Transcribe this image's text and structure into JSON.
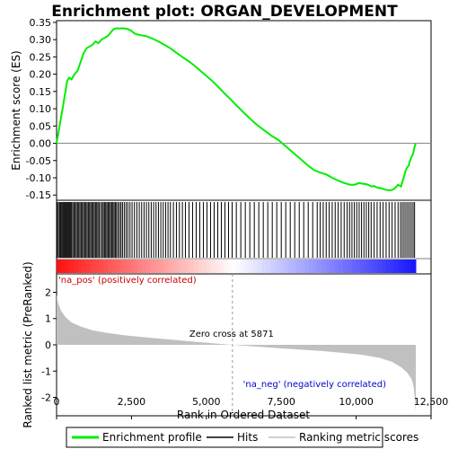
{
  "chart_data": {
    "type": "line",
    "title": "Enrichment plot: ORGAN_DEVELOPMENT",
    "xlabel": "Rank in Ordered Dataset",
    "xlim": [
      0,
      12500
    ],
    "x_ticks": [
      0,
      2500,
      5000,
      7500,
      10000,
      12500
    ],
    "x_tick_labels": [
      "0",
      "2,500",
      "5,000",
      "7,500",
      "10,000",
      "12,500"
    ],
    "panels": {
      "es": {
        "ylabel": "Enrichment score (ES)",
        "ylim": [
          -0.165,
          0.355
        ],
        "y_ticks": [
          -0.15,
          -0.1,
          -0.05,
          0.0,
          0.05,
          0.1,
          0.15,
          0.2,
          0.25,
          0.3,
          0.35
        ],
        "y_tick_labels": [
          "-0.15",
          "-0.10",
          "-0.05",
          "0.00",
          "0.05",
          "0.10",
          "0.15",
          "0.20",
          "0.25",
          "0.30",
          "0.35"
        ],
        "series": [
          {
            "name": "Enrichment profile",
            "color": "#00ee00",
            "x": [
              0,
              60,
              120,
              200,
              280,
              350,
              420,
              500,
              600,
              700,
              800,
              900,
              1000,
              1100,
              1200,
              1300,
              1400,
              1500,
              1600,
              1700,
              1800,
              1900,
              2000,
              2100,
              2200,
              2300,
              2400,
              2500,
              2600,
              2700,
              2800,
              3000,
              3200,
              3400,
              3600,
              3800,
              4000,
              4200,
              4400,
              4600,
              4800,
              5000,
              5200,
              5400,
              5600,
              5800,
              6000,
              6200,
              6400,
              6600,
              6800,
              7000,
              7200,
              7400,
              7600,
              7800,
              8000,
              8200,
              8400,
              8600,
              8800,
              9000,
              9200,
              9400,
              9600,
              9800,
              9950,
              10100,
              10200,
              10300,
              10400,
              10500,
              10600,
              10700,
              10800,
              10900,
              11000,
              11100,
              11200,
              11300,
              11400,
              11500,
              11550,
              11600,
              11650,
              11700,
              11750,
              11800,
              11850,
              11900,
              11950,
              11990
            ],
            "y": [
              0.0,
              0.03,
              0.06,
              0.1,
              0.14,
              0.18,
              0.19,
              0.185,
              0.2,
              0.21,
              0.235,
              0.26,
              0.275,
              0.28,
              0.285,
              0.295,
              0.29,
              0.3,
              0.305,
              0.31,
              0.32,
              0.33,
              0.333,
              0.332,
              0.333,
              0.332,
              0.33,
              0.325,
              0.318,
              0.315,
              0.313,
              0.31,
              0.303,
              0.295,
              0.285,
              0.275,
              0.262,
              0.25,
              0.238,
              0.225,
              0.21,
              0.195,
              0.18,
              0.163,
              0.145,
              0.128,
              0.11,
              0.093,
              0.076,
              0.06,
              0.046,
              0.033,
              0.02,
              0.01,
              -0.005,
              -0.02,
              -0.035,
              -0.05,
              -0.065,
              -0.078,
              -0.085,
              -0.09,
              -0.1,
              -0.108,
              -0.115,
              -0.12,
              -0.12,
              -0.115,
              -0.117,
              -0.118,
              -0.12,
              -0.125,
              -0.124,
              -0.128,
              -0.13,
              -0.132,
              -0.135,
              -0.136,
              -0.135,
              -0.13,
              -0.12,
              -0.125,
              -0.11,
              -0.095,
              -0.08,
              -0.07,
              -0.065,
              -0.05,
              -0.04,
              -0.03,
              -0.01,
              0.0
            ]
          }
        ]
      },
      "hits": {
        "legend_label": "Hits",
        "positions": [
          20,
          60,
          100,
          130,
          160,
          200,
          230,
          260,
          290,
          320,
          350,
          380,
          410,
          440,
          470,
          500,
          540,
          580,
          620,
          660,
          700,
          740,
          780,
          820,
          860,
          900,
          940,
          980,
          1020,
          1060,
          1100,
          1140,
          1180,
          1220,
          1260,
          1300,
          1340,
          1380,
          1420,
          1470,
          1520,
          1560,
          1600,
          1640,
          1680,
          1720,
          1760,
          1800,
          1840,
          1880,
          1920,
          1960,
          2000,
          2050,
          2100,
          2150,
          2200,
          2260,
          2320,
          2380,
          2450,
          2520,
          2600,
          2680,
          2760,
          2840,
          2920,
          3000,
          3080,
          3160,
          3240,
          3320,
          3400,
          3480,
          3560,
          3640,
          3720,
          3800,
          3900,
          4000,
          4100,
          4200,
          4300,
          4420,
          4540,
          4660,
          4780,
          4900,
          5020,
          5140,
          5260,
          5380,
          5500,
          5620,
          5740,
          5860,
          6000,
          6150,
          6300,
          6450,
          6600,
          6750,
          6900,
          7050,
          7200,
          7350,
          7500,
          7650,
          7800,
          7950,
          8100,
          8250,
          8400,
          8550,
          8700,
          8800,
          8900,
          9000,
          9100,
          9200,
          9300,
          9400,
          9500,
          9600,
          9700,
          9780,
          9860,
          9940,
          10020,
          10100,
          10180,
          10260,
          10340,
          10420,
          10500,
          10600,
          10700,
          10800,
          10900,
          11000,
          11100,
          11200,
          11300,
          11400,
          11480,
          11540,
          11600,
          11660,
          11720,
          11780,
          11840,
          11900,
          11950
        ]
      },
      "metric": {
        "ylabel": "Ranked list metric (PreRanked)",
        "ylim": [
          -2.7,
          2.7
        ],
        "y_ticks": [
          -2,
          -1,
          0,
          1,
          2
        ],
        "y_tick_labels": [
          "-2",
          "-1",
          "0",
          "1",
          "2"
        ],
        "fill_color": "#c0c0c0",
        "series_name": "Ranking metric scores",
        "x": [
          0,
          50,
          150,
          300,
          500,
          800,
          1200,
          1700,
          2300,
          3000,
          3800,
          4600,
          5300,
          5871,
          6500,
          7200,
          8000,
          8800,
          9500,
          10200,
          10800,
          11200,
          11500,
          11700,
          11850,
          11920,
          11960,
          11990
        ],
        "y": [
          1.9,
          1.6,
          1.3,
          1.05,
          0.85,
          0.7,
          0.55,
          0.45,
          0.36,
          0.28,
          0.2,
          0.12,
          0.05,
          0.0,
          -0.05,
          -0.11,
          -0.17,
          -0.23,
          -0.3,
          -0.38,
          -0.5,
          -0.65,
          -0.85,
          -1.05,
          -1.3,
          -1.6,
          -2.1,
          -2.55
        ]
      }
    },
    "annotations": {
      "pos_label": "'na_pos' (positively correlated)",
      "neg_label": "'na_neg' (negatively correlated)",
      "zero_cross_label": "Zero cross at 5871",
      "zero_cross_x": 5871
    },
    "colors": {
      "profile": "#00ee00",
      "pos_text": "#cc0000",
      "neg_text": "#0000cc",
      "bar_pos": "#dd0000",
      "bar_neg": "#0000dd"
    },
    "legend": {
      "items": [
        {
          "label": "Enrichment profile",
          "color": "#00ee00",
          "style": "thick-line"
        },
        {
          "label": "Hits",
          "color": "#000000",
          "style": "line"
        },
        {
          "label": "Ranking metric scores",
          "color": "#c0c0c0",
          "style": "line"
        }
      ],
      "placement": "bottom"
    }
  }
}
